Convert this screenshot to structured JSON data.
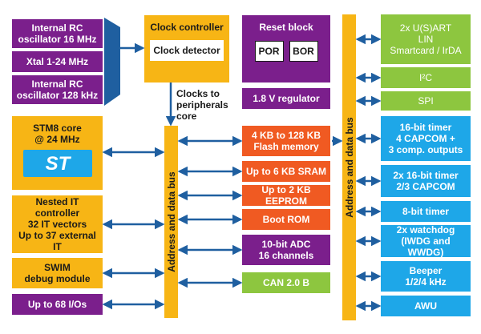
{
  "colors": {
    "purple": "#7b1f8c",
    "yellow": "#f7b515",
    "orange": "#f05a22",
    "blue": "#1ea7e8",
    "green": "#8dc63f",
    "arrow": "#1f5fa0"
  },
  "oscillators": {
    "rc16": "Internal RC\noscillator 16 MHz",
    "xtal": "Xtal 1-24 MHz",
    "rc128": "Internal RC\noscillator 128 kHz"
  },
  "clock": {
    "controller": "Clock controller",
    "detector": "Clock detector",
    "to_peripherals": "Clocks to\nperipherals\ncore"
  },
  "reset": {
    "title": "Reset block",
    "por": "POR",
    "bor": "BOR"
  },
  "regulator": "1.8 V regulator",
  "core": {
    "label": "STM8 core\n@ 24 MHz",
    "logo_text": "ST",
    "interrupt": "Nested IT controller\n32 IT vectors\nUp to 37 external IT",
    "swim": "SWIM\ndebug module",
    "io": "Up to 68 I/Os"
  },
  "bus": {
    "left": "Address and data bus",
    "right": "Address and data bus"
  },
  "memory": {
    "flash": "4 KB to 128 KB\nFlash memory",
    "sram": "Up to 6 KB SRAM",
    "eeprom": "Up to 2 KB EEPROM",
    "bootrom": "Boot ROM",
    "adc": "10-bit ADC\n16 channels",
    "can": "CAN 2.0 B"
  },
  "peripherals": {
    "usart": "2x U(S)ART\nLIN\nSmartcard / IrDA",
    "i2c": "I²C",
    "spi": "SPI",
    "timer16": "16-bit timer\n4 CAPCOM +\n3 comp. outputs",
    "timer16x2": "2x 16-bit timer\n2/3 CAPCOM",
    "timer8": "8-bit timer",
    "watchdog": "2x watchdog\n(IWDG and WWDG)",
    "beeper": "Beeper\n1/2/4 kHz",
    "awu": "AWU"
  }
}
